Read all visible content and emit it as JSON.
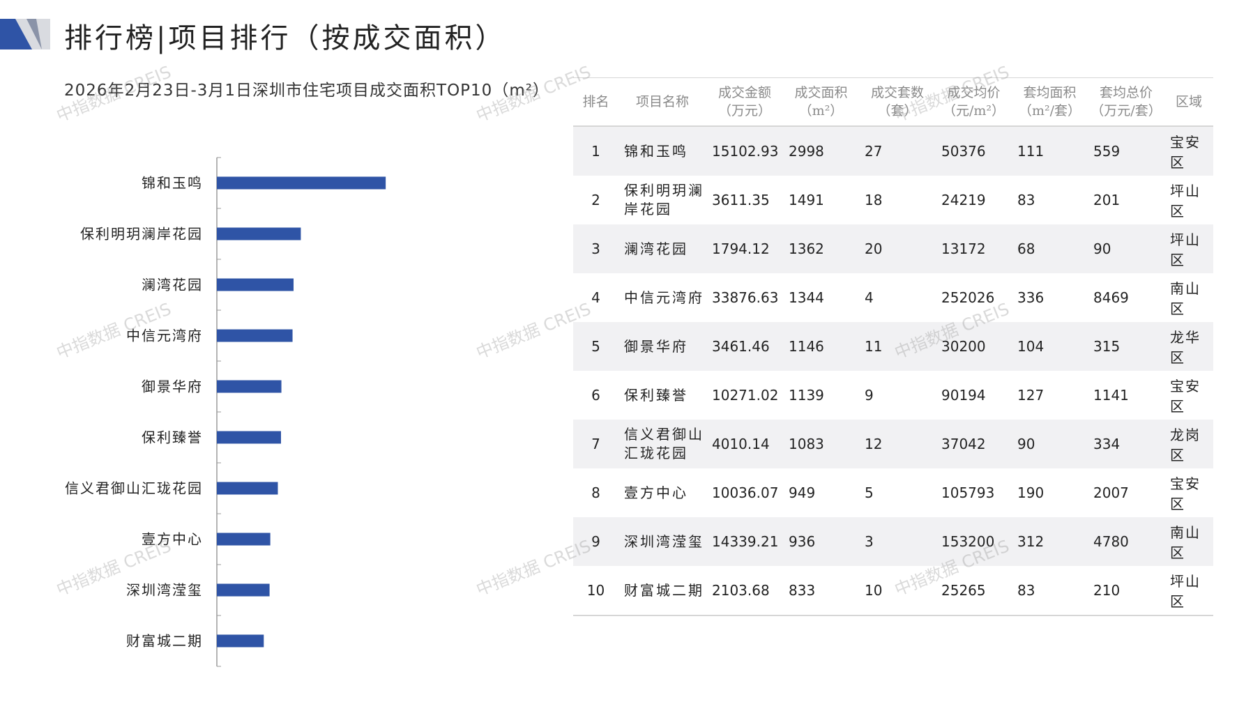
{
  "page": {
    "title": "排行榜|项目排行（按成交面积）"
  },
  "colors": {
    "bar": "#2f54a6",
    "deco_dark": "#2f54a6",
    "deco_light": "#d9dbe0",
    "axis": "#9a9a9a"
  },
  "watermark_text": "中指数据 CREIS",
  "chart_data": {
    "type": "bar",
    "orientation": "horizontal",
    "title": "2026年2月23日-3月1日深圳市住宅项目成交面积TOP10（m²）",
    "categories": [
      "锦和玉鸣",
      "保利明玥澜岸花园",
      "澜湾花园",
      "中信元湾府",
      "御景华府",
      "保利臻誉",
      "信义君御山汇珑花园",
      "壹方中心",
      "深圳湾滢玺",
      "财富城二期"
    ],
    "values": [
      2998,
      1491,
      1362,
      1344,
      1146,
      1139,
      1083,
      949,
      936,
      833
    ],
    "xlim": [
      0,
      5200
    ],
    "grid": false,
    "legend": "none"
  },
  "table": {
    "headers": [
      {
        "l1": "排名",
        "l2": ""
      },
      {
        "l1": "项目名称",
        "l2": ""
      },
      {
        "l1": "成交金额",
        "l2": "（万元）"
      },
      {
        "l1": "成交面积",
        "l2": "（m²）"
      },
      {
        "l1": "成交套数",
        "l2": "（套）"
      },
      {
        "l1": "成交均价",
        "l2": "（元/m²）"
      },
      {
        "l1": "套均面积",
        "l2": "（m²/套）"
      },
      {
        "l1": "套均总价",
        "l2": "（万元/套）"
      },
      {
        "l1": "区域",
        "l2": ""
      }
    ],
    "rows": [
      {
        "rank": "1",
        "name": "锦和玉鸣",
        "amount": "15102.93",
        "area": "2998",
        "units": "27",
        "avg_price": "50376",
        "avg_area": "111",
        "avg_total": "559",
        "district": "宝安区"
      },
      {
        "rank": "2",
        "name": "保利明玥澜岸花园",
        "amount": "3611.35",
        "area": "1491",
        "units": "18",
        "avg_price": "24219",
        "avg_area": "83",
        "avg_total": "201",
        "district": "坪山区"
      },
      {
        "rank": "3",
        "name": "澜湾花园",
        "amount": "1794.12",
        "area": "1362",
        "units": "20",
        "avg_price": "13172",
        "avg_area": "68",
        "avg_total": "90",
        "district": "坪山区"
      },
      {
        "rank": "4",
        "name": "中信元湾府",
        "amount": "33876.63",
        "area": "1344",
        "units": "4",
        "avg_price": "252026",
        "avg_area": "336",
        "avg_total": "8469",
        "district": "南山区"
      },
      {
        "rank": "5",
        "name": "御景华府",
        "amount": "3461.46",
        "area": "1146",
        "units": "11",
        "avg_price": "30200",
        "avg_area": "104",
        "avg_total": "315",
        "district": "龙华区"
      },
      {
        "rank": "6",
        "name": "保利臻誉",
        "amount": "10271.02",
        "area": "1139",
        "units": "9",
        "avg_price": "90194",
        "avg_area": "127",
        "avg_total": "1141",
        "district": "宝安区"
      },
      {
        "rank": "7",
        "name": "信义君御山汇珑花园",
        "amount": "4010.14",
        "area": "1083",
        "units": "12",
        "avg_price": "37042",
        "avg_area": "90",
        "avg_total": "334",
        "district": "龙岗区"
      },
      {
        "rank": "8",
        "name": "壹方中心",
        "amount": "10036.07",
        "area": "949",
        "units": "5",
        "avg_price": "105793",
        "avg_area": "190",
        "avg_total": "2007",
        "district": "宝安区"
      },
      {
        "rank": "9",
        "name": "深圳湾滢玺",
        "amount": "14339.21",
        "area": "936",
        "units": "3",
        "avg_price": "153200",
        "avg_area": "312",
        "avg_total": "4780",
        "district": "南山区"
      },
      {
        "rank": "10",
        "name": "财富城二期",
        "amount": "2103.68",
        "area": "833",
        "units": "10",
        "avg_price": "25265",
        "avg_area": "83",
        "avg_total": "210",
        "district": "坪山区"
      }
    ]
  }
}
